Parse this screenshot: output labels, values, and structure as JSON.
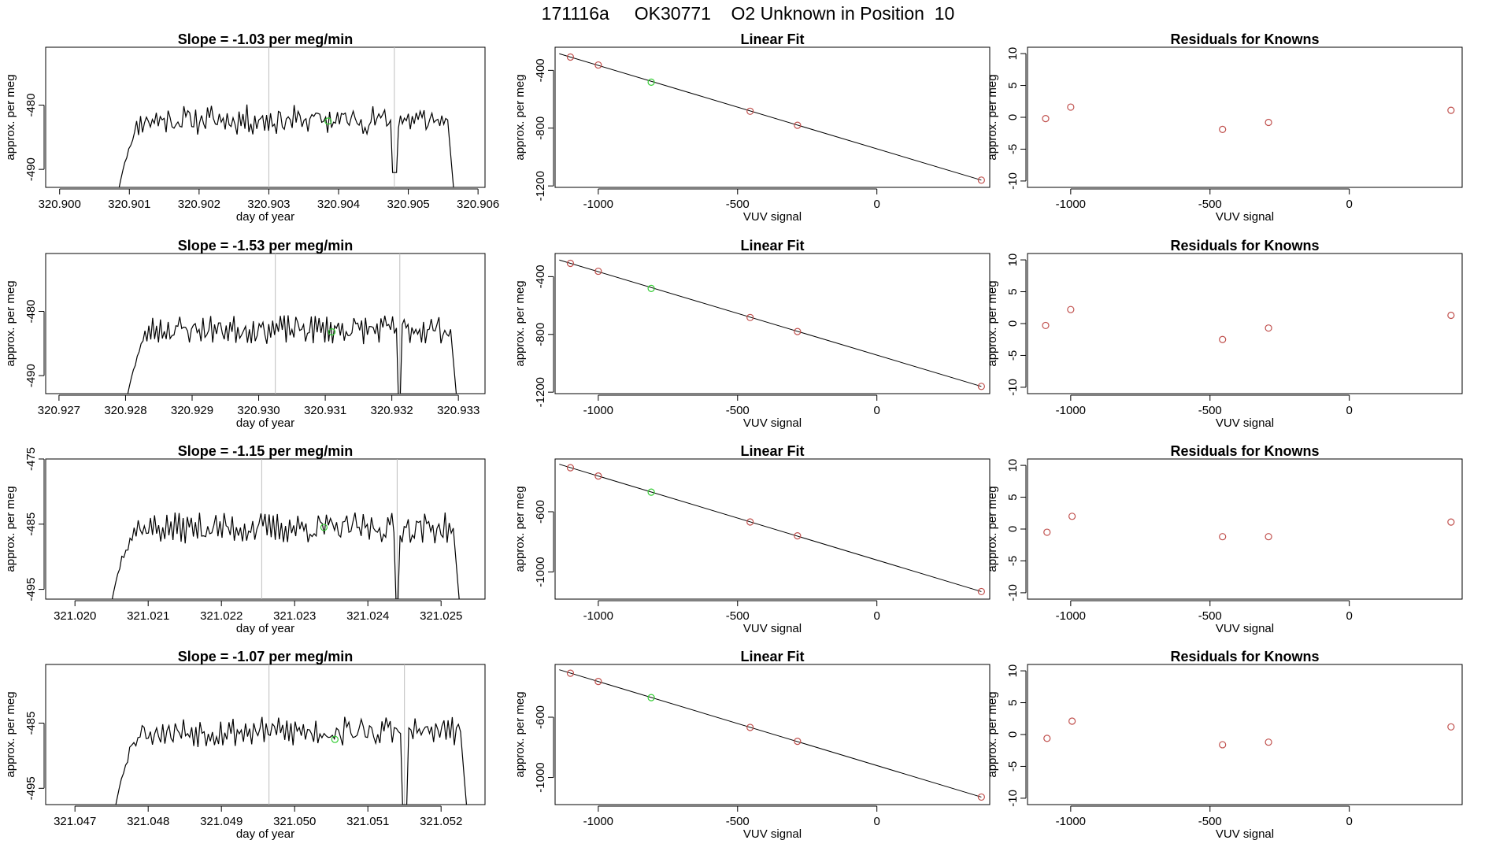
{
  "title": "171116a     OK30771    O2 Unknown in Position  10",
  "colors": {
    "trace": "#000000",
    "vline": "#bdbdbd",
    "known": "#c0504d",
    "unknown": "#33cc33",
    "fit": "#000000"
  },
  "chart_data": [
    {
      "type": "line",
      "panel": "trace",
      "title": "Slope =  -1.03  per meg/min",
      "xlabel": "day of year",
      "ylabel": "approx. per meg",
      "xlim": [
        320.8998,
        320.9061
      ],
      "ylim": [
        -492.8,
        -471
      ],
      "xticks": [
        320.9,
        320.901,
        320.902,
        320.903,
        320.904,
        320.905,
        320.906
      ],
      "xtick_labels": [
        "320.900",
        "320.901",
        "320.902",
        "320.903",
        "320.904",
        "320.905",
        "320.906"
      ],
      "yticks": [
        -480,
        -490
      ],
      "ytick_labels": [
        "-480",
        "-490"
      ],
      "vlines": [
        320.903,
        320.9048
      ],
      "trace_start": 320.90085,
      "trace_end": 320.90565,
      "y_start": -493,
      "y_plateau": -482.3,
      "noise": 1.8,
      "seed": 11,
      "dips": [
        {
          "x": 320.9048,
          "y": -490.5
        }
      ],
      "unknown_point": {
        "x": 320.90385,
        "y": -482.5
      }
    },
    {
      "type": "scatter",
      "panel": "fit",
      "title": "Linear Fit",
      "xlabel": "VUV signal",
      "ylabel": "approx. per meg",
      "xlim": [
        -1155,
        405
      ],
      "ylim": [
        -1210,
        -240
      ],
      "xticks": [
        -1000,
        -500,
        0
      ],
      "xtick_labels": [
        "-1000",
        "-500",
        "0"
      ],
      "yticks": [
        -400,
        -800,
        -1200
      ],
      "ytick_labels": [
        "-400",
        "-800",
        "-1200"
      ],
      "points": [
        {
          "x": -1100,
          "y": -308,
          "kind": "known"
        },
        {
          "x": -1000,
          "y": -363,
          "kind": "known"
        },
        {
          "x": -810,
          "y": -482,
          "kind": "unknown"
        },
        {
          "x": -455,
          "y": -683,
          "kind": "known"
        },
        {
          "x": -285,
          "y": -780,
          "kind": "known"
        },
        {
          "x": 375,
          "y": -1160,
          "kind": "known"
        }
      ],
      "fit_line": [
        {
          "x": -1140,
          "y": -285
        },
        {
          "x": 375,
          "y": -1160
        }
      ]
    },
    {
      "type": "scatter",
      "panel": "residuals",
      "title": "Residuals for Knowns",
      "xlabel": "VUV signal",
      "ylabel": "approx. per meg",
      "xlim": [
        -1155,
        405
      ],
      "ylim": [
        -11,
        11
      ],
      "xticks": [
        -1000,
        -500,
        0
      ],
      "xtick_labels": [
        "-1000",
        "-500",
        "0"
      ],
      "yticks": [
        10,
        5,
        0,
        -5,
        -10
      ],
      "ytick_labels": [
        "10",
        "5",
        "0",
        "-5",
        "-10"
      ],
      "points": [
        {
          "x": -1090,
          "y": -0.2
        },
        {
          "x": -1000,
          "y": 1.6
        },
        {
          "x": -455,
          "y": -1.9
        },
        {
          "x": -290,
          "y": -0.8
        },
        {
          "x": 365,
          "y": 1.1
        }
      ]
    },
    {
      "type": "line",
      "panel": "trace",
      "title": "Slope =  -1.53  per meg/min",
      "xlabel": "day of year",
      "ylabel": "approx. per meg",
      "xlim": [
        320.9268,
        320.9334
      ],
      "ylim": [
        -492.8,
        -471
      ],
      "xticks": [
        320.927,
        320.928,
        320.929,
        320.93,
        320.931,
        320.932,
        320.933
      ],
      "xtick_labels": [
        "320.927",
        "320.928",
        "320.929",
        "320.930",
        "320.931",
        "320.932",
        "320.933"
      ],
      "yticks": [
        -480,
        -490
      ],
      "ytick_labels": [
        "-480",
        "-490"
      ],
      "vlines": [
        320.93025,
        320.93212
      ],
      "trace_start": 320.92803,
      "trace_end": 320.93297,
      "y_start": -493,
      "y_plateau": -482.8,
      "noise": 1.7,
      "seed": 23,
      "dips": [
        {
          "x": 320.93212,
          "y": -493
        }
      ],
      "unknown_point": {
        "x": 320.9311,
        "y": -483.2
      }
    },
    {
      "type": "scatter",
      "panel": "fit",
      "title": "Linear Fit",
      "xlabel": "VUV signal",
      "ylabel": "approx. per meg",
      "xlim": [
        -1155,
        405
      ],
      "ylim": [
        -1210,
        -240
      ],
      "xticks": [
        -1000,
        -500,
        0
      ],
      "xtick_labels": [
        "-1000",
        "-500",
        "0"
      ],
      "yticks": [
        -400,
        -800,
        -1200
      ],
      "ytick_labels": [
        "-400",
        "-800",
        "-1200"
      ],
      "points": [
        {
          "x": -1100,
          "y": -308
        },
        {
          "x": -1000,
          "y": -363
        },
        {
          "x": -810,
          "y": -482,
          "kind": "unknown"
        },
        {
          "x": -455,
          "y": -683
        },
        {
          "x": -285,
          "y": -780
        },
        {
          "x": 375,
          "y": -1160
        }
      ],
      "fit_line": [
        {
          "x": -1140,
          "y": -285
        },
        {
          "x": 375,
          "y": -1160
        }
      ]
    },
    {
      "type": "scatter",
      "panel": "residuals",
      "title": "Residuals for Knowns",
      "xlabel": "VUV signal",
      "ylabel": "approx. per meg",
      "xlim": [
        -1155,
        405
      ],
      "ylim": [
        -11,
        11
      ],
      "xticks": [
        -1000,
        -500,
        0
      ],
      "xtick_labels": [
        "-1000",
        "-500",
        "0"
      ],
      "yticks": [
        10,
        5,
        0,
        -5,
        -10
      ],
      "ytick_labels": [
        "10",
        "5",
        "0",
        "-5",
        "-10"
      ],
      "points": [
        {
          "x": -1090,
          "y": -0.3
        },
        {
          "x": -1000,
          "y": 2.2
        },
        {
          "x": -455,
          "y": -2.5
        },
        {
          "x": -290,
          "y": -0.7
        },
        {
          "x": 365,
          "y": 1.3
        }
      ]
    },
    {
      "type": "line",
      "panel": "trace",
      "title": "Slope =  -1.15  per meg/min",
      "xlabel": "day of year",
      "ylabel": "approx. per meg",
      "xlim": [
        321.0196,
        321.0256
      ],
      "ylim": [
        -496.5,
        -475
      ],
      "xticks": [
        321.02,
        321.021,
        321.022,
        321.023,
        321.024,
        321.025
      ],
      "xtick_labels": [
        "321.020",
        "321.021",
        "321.022",
        "321.023",
        "321.024",
        "321.025"
      ],
      "yticks": [
        -475,
        -485,
        -495
      ],
      "ytick_labels": [
        "-475",
        "-485",
        "-495"
      ],
      "vlines": [
        321.02255,
        321.0244
      ],
      "trace_start": 321.0205,
      "trace_end": 321.02525,
      "y_start": -497,
      "y_plateau": -485.6,
      "noise": 1.8,
      "seed": 37,
      "dips": [
        {
          "x": 321.0244,
          "y": -496.5
        }
      ],
      "unknown_point": {
        "x": 321.0234,
        "y": -485.5
      }
    },
    {
      "type": "scatter",
      "panel": "fit",
      "title": "Linear Fit",
      "xlabel": "VUV signal",
      "ylabel": "approx. per meg",
      "xlim": [
        -1155,
        405
      ],
      "ylim": [
        -1180,
        -250
      ],
      "xticks": [
        -1000,
        -500,
        0
      ],
      "xtick_labels": [
        "-1000",
        "-500",
        "0"
      ],
      "yticks": [
        -600,
        -1000
      ],
      "ytick_labels": [
        "-600",
        "-1000"
      ],
      "points": [
        {
          "x": -1100,
          "y": -308
        },
        {
          "x": -1000,
          "y": -363
        },
        {
          "x": -810,
          "y": -470,
          "kind": "unknown"
        },
        {
          "x": -455,
          "y": -668
        },
        {
          "x": -285,
          "y": -760
        },
        {
          "x": 375,
          "y": -1130
        }
      ],
      "fit_line": [
        {
          "x": -1140,
          "y": -285
        },
        {
          "x": 375,
          "y": -1130
        }
      ]
    },
    {
      "type": "scatter",
      "panel": "residuals",
      "title": "Residuals for Knowns",
      "xlabel": "VUV signal",
      "ylabel": "approx. per meg",
      "xlim": [
        -1155,
        405
      ],
      "ylim": [
        -11,
        11
      ],
      "xticks": [
        -1000,
        -500,
        0
      ],
      "xtick_labels": [
        "-1000",
        "-500",
        "0"
      ],
      "yticks": [
        10,
        5,
        0,
        -5,
        -10
      ],
      "ytick_labels": [
        "10",
        "5",
        "0",
        "-5",
        "-10"
      ],
      "points": [
        {
          "x": -1085,
          "y": -0.5
        },
        {
          "x": -995,
          "y": 2.0
        },
        {
          "x": -455,
          "y": -1.2
        },
        {
          "x": -290,
          "y": -1.2
        },
        {
          "x": 365,
          "y": 1.1
        }
      ]
    },
    {
      "type": "line",
      "panel": "trace",
      "title": "Slope =  -1.07  per meg/min",
      "xlabel": "day of year",
      "ylabel": "approx. per meg",
      "xlim": [
        321.0466,
        321.0526
      ],
      "ylim": [
        -497.5,
        -476
      ],
      "xticks": [
        321.047,
        321.048,
        321.049,
        321.05,
        321.051,
        321.052
      ],
      "xtick_labels": [
        "321.047",
        "321.048",
        "321.049",
        "321.050",
        "321.051",
        "321.052"
      ],
      "yticks": [
        -485,
        -495
      ],
      "ytick_labels": [
        "-485",
        "-495"
      ],
      "vlines": [
        321.04965,
        321.0515
      ],
      "trace_start": 321.04755,
      "trace_end": 321.05235,
      "y_start": -498,
      "y_plateau": -486.3,
      "noise": 1.8,
      "seed": 53,
      "dips": [
        {
          "x": 321.0515,
          "y": -497.5
        }
      ],
      "unknown_point": {
        "x": 321.05055,
        "y": -487.5
      }
    },
    {
      "type": "scatter",
      "panel": "fit",
      "title": "Linear Fit",
      "xlabel": "VUV signal",
      "ylabel": "approx. per meg",
      "xlim": [
        -1155,
        405
      ],
      "ylim": [
        -1180,
        -250
      ],
      "xticks": [
        -1000,
        -500,
        0
      ],
      "xtick_labels": [
        "-1000",
        "-500",
        "0"
      ],
      "yticks": [
        -600,
        -1000
      ],
      "ytick_labels": [
        "-600",
        "-1000"
      ],
      "points": [
        {
          "x": -1100,
          "y": -308
        },
        {
          "x": -1000,
          "y": -363
        },
        {
          "x": -810,
          "y": -470,
          "kind": "unknown"
        },
        {
          "x": -455,
          "y": -668
        },
        {
          "x": -285,
          "y": -760
        },
        {
          "x": 375,
          "y": -1130
        }
      ],
      "fit_line": [
        {
          "x": -1140,
          "y": -285
        },
        {
          "x": 375,
          "y": -1130
        }
      ]
    },
    {
      "type": "scatter",
      "panel": "residuals",
      "title": "Residuals for Knowns",
      "xlabel": "VUV signal",
      "ylabel": "approx. per meg",
      "xlim": [
        -1155,
        405
      ],
      "ylim": [
        -11,
        11
      ],
      "xticks": [
        -1000,
        -500,
        0
      ],
      "xtick_labels": [
        "-1000",
        "-500",
        "0"
      ],
      "yticks": [
        10,
        5,
        0,
        -5,
        -10
      ],
      "ytick_labels": [
        "10",
        "5",
        "0",
        "-5",
        "-10"
      ],
      "points": [
        {
          "x": -1085,
          "y": -0.6
        },
        {
          "x": -995,
          "y": 2.1
        },
        {
          "x": -455,
          "y": -1.6
        },
        {
          "x": -290,
          "y": -1.2
        },
        {
          "x": 365,
          "y": 1.2
        }
      ]
    }
  ]
}
